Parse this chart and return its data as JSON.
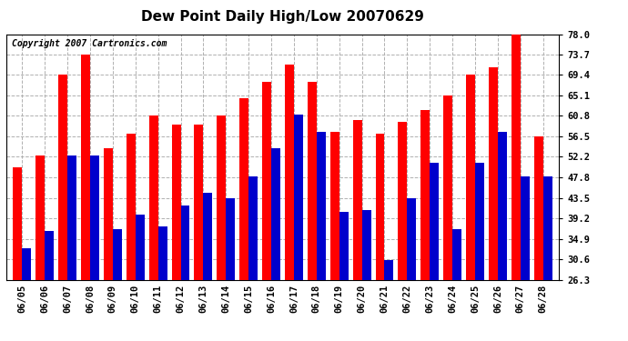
{
  "title": "Dew Point Daily High/Low 20070629",
  "copyright": "Copyright 2007 Cartronics.com",
  "dates": [
    "06/05",
    "06/06",
    "06/07",
    "06/08",
    "06/09",
    "06/10",
    "06/11",
    "06/12",
    "06/13",
    "06/14",
    "06/15",
    "06/16",
    "06/17",
    "06/18",
    "06/19",
    "06/20",
    "06/21",
    "06/22",
    "06/23",
    "06/24",
    "06/25",
    "06/26",
    "06/27",
    "06/28"
  ],
  "highs": [
    50.0,
    52.5,
    69.4,
    73.7,
    54.0,
    57.0,
    60.8,
    59.0,
    59.0,
    60.8,
    64.5,
    68.0,
    71.5,
    68.0,
    57.5,
    60.0,
    57.0,
    59.5,
    62.0,
    65.1,
    69.4,
    71.0,
    78.0,
    56.5
  ],
  "lows": [
    33.0,
    36.5,
    52.5,
    52.5,
    37.0,
    40.0,
    37.5,
    42.0,
    44.5,
    43.5,
    48.0,
    54.0,
    61.0,
    57.5,
    40.5,
    41.0,
    30.5,
    43.5,
    51.0,
    37.0,
    51.0,
    57.5,
    48.0,
    48.0
  ],
  "high_color": "#ff0000",
  "low_color": "#0000cc",
  "bg_color": "#ffffff",
  "grid_color": "#b0b0b0",
  "ymin": 26.3,
  "ymax": 78.0,
  "yticks": [
    26.3,
    30.6,
    34.9,
    39.2,
    43.5,
    47.8,
    52.2,
    56.5,
    60.8,
    65.1,
    69.4,
    73.7,
    78.0
  ],
  "ytick_labels": [
    "26.3",
    "30.6",
    "34.9",
    "39.2",
    "43.5",
    "47.8",
    "52.2",
    "56.5",
    "60.8",
    "65.1",
    "69.4",
    "73.7",
    "78.0"
  ],
  "title_fontsize": 11,
  "copyright_fontsize": 7,
  "tick_fontsize": 7.5,
  "bar_width": 0.4
}
